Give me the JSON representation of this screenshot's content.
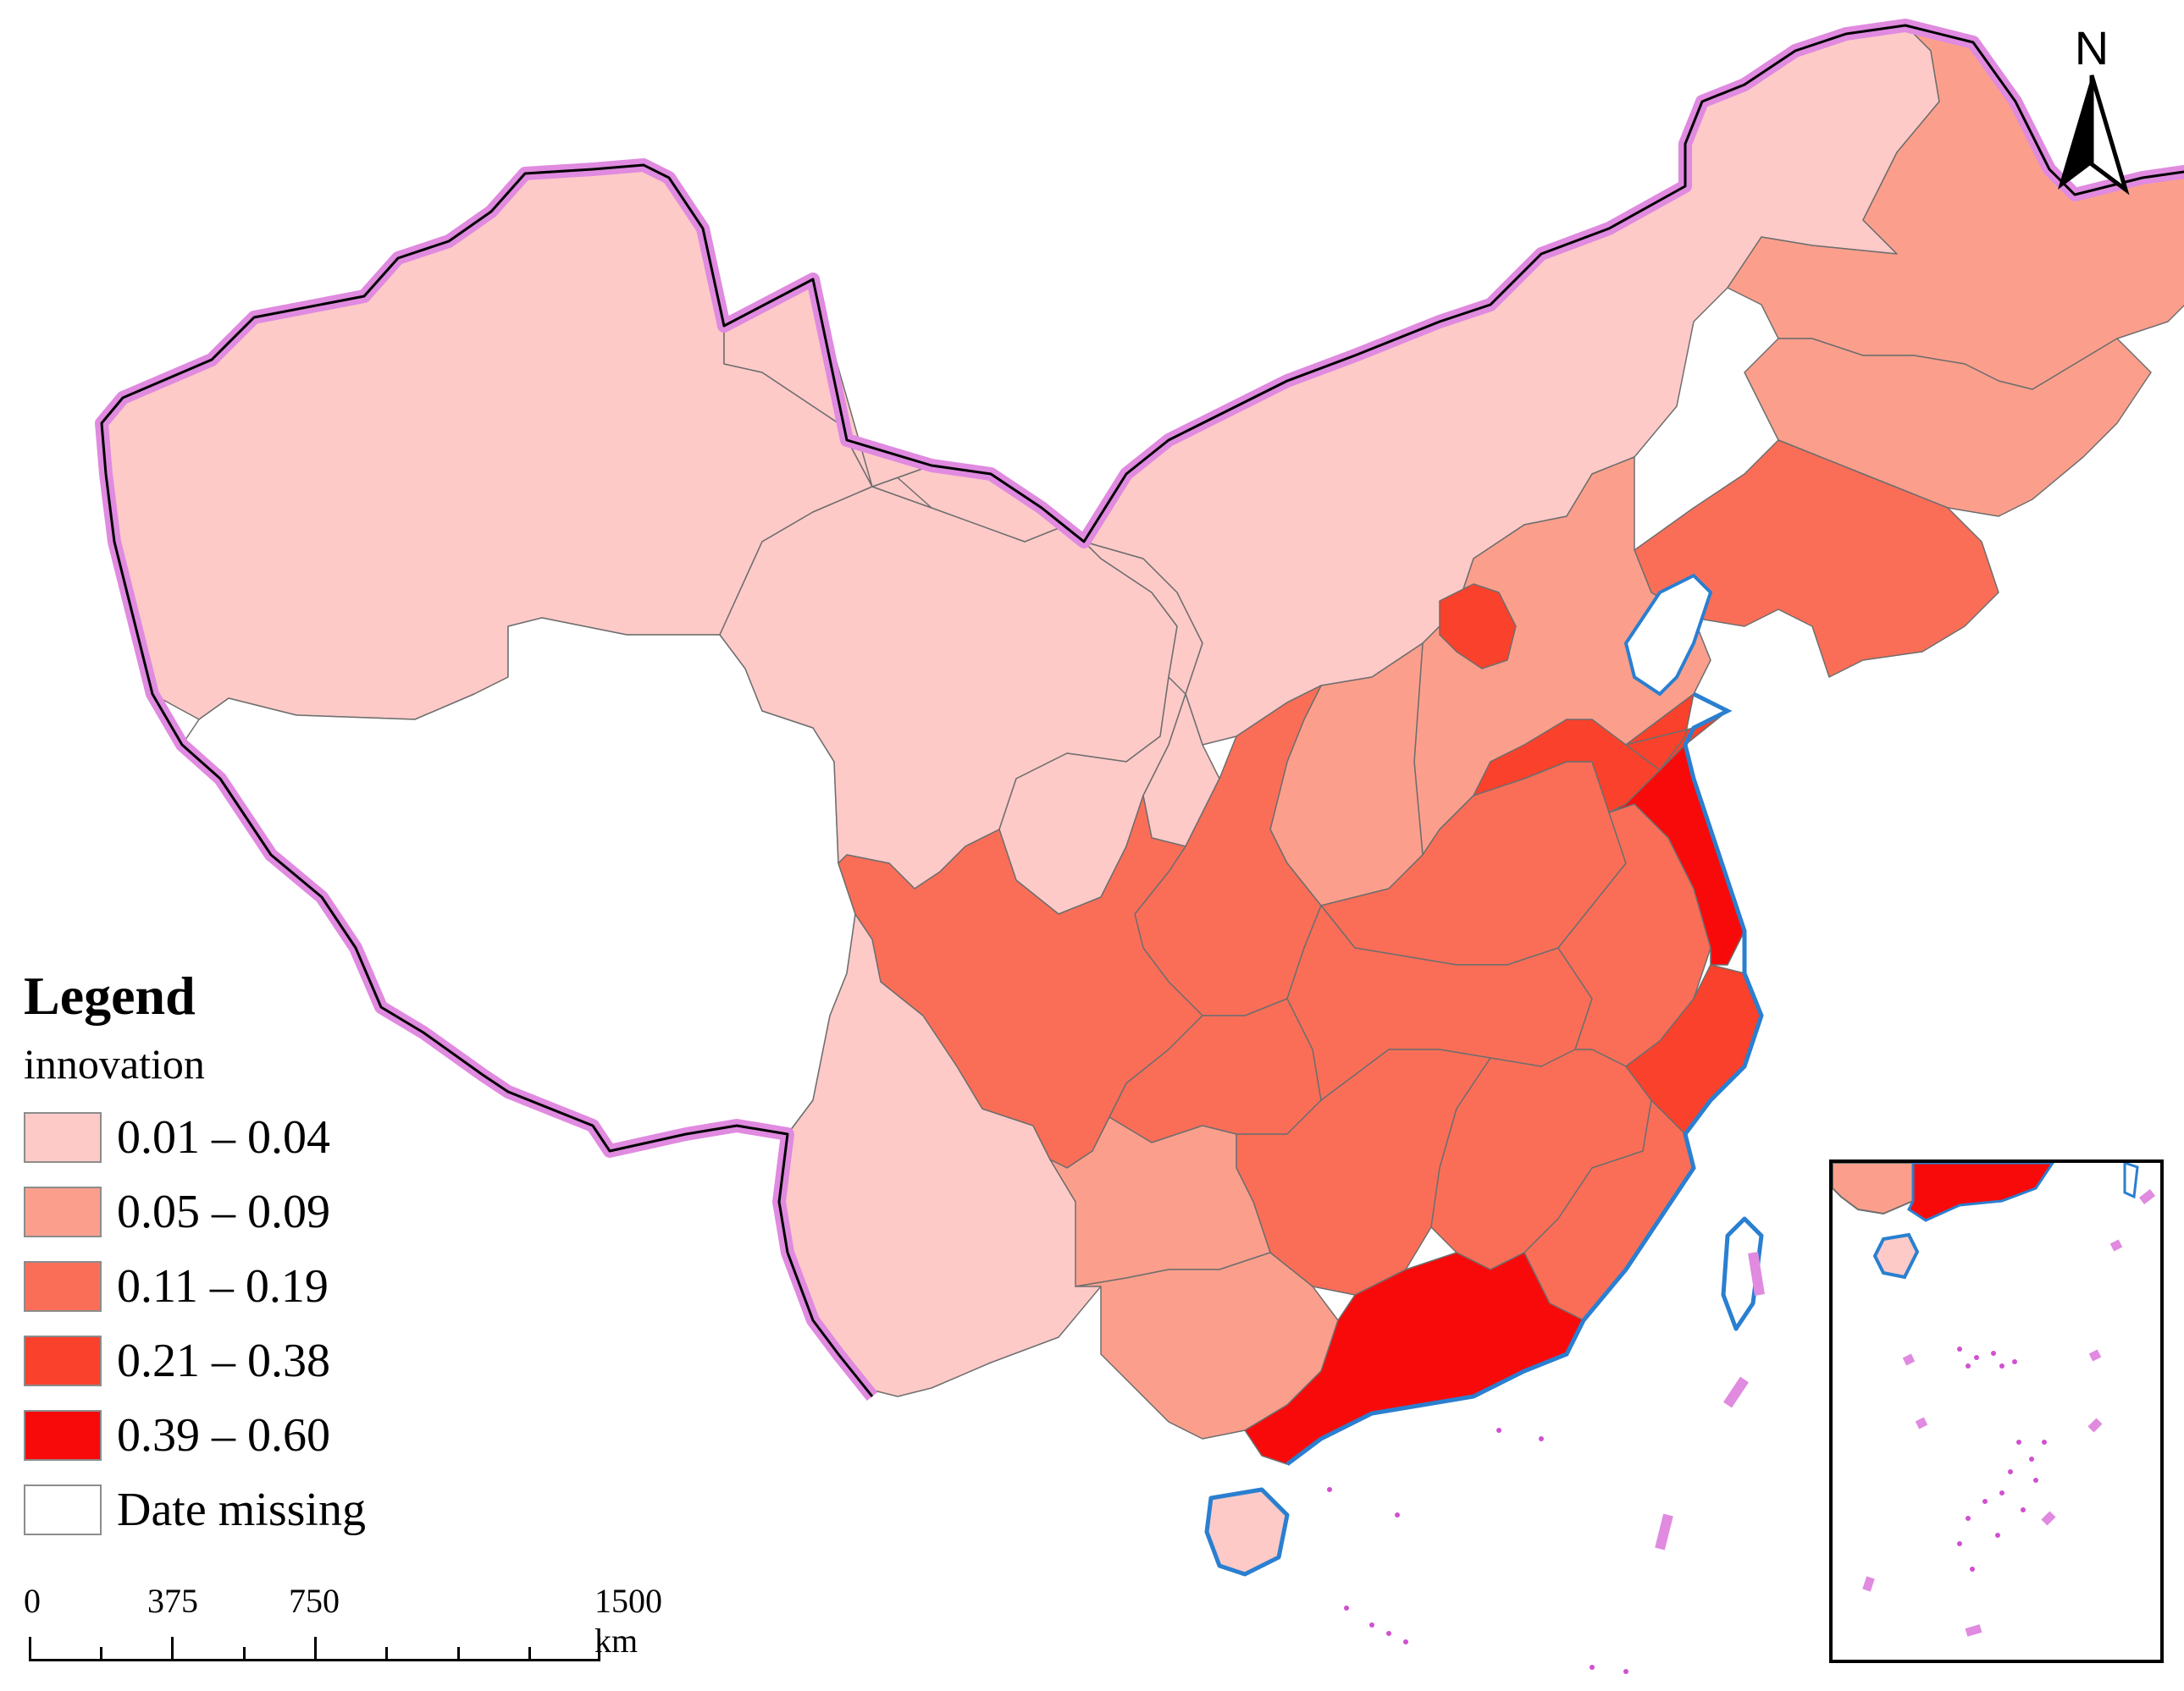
{
  "legend": {
    "title": "Legend",
    "field": "innovation",
    "classes": [
      {
        "label": "0.01 – 0.04",
        "color": "#fdcac8"
      },
      {
        "label": "0.05 – 0.09",
        "color": "#fb9f8c"
      },
      {
        "label": "0.11 – 0.19",
        "color": "#fa6e58"
      },
      {
        "label": "0.21 – 0.38",
        "color": "#f9412b"
      },
      {
        "label": "0.39 – 0.60",
        "color": "#f80a0a"
      },
      {
        "label": "Date missing",
        "color": "#ffffff"
      }
    ]
  },
  "scale_bar": {
    "ticks": [
      "0",
      "375",
      "750",
      "1500 km"
    ]
  },
  "north_arrow": {
    "label": "N",
    "icon": "north-arrow-icon"
  },
  "colors": {
    "border_glow": "#e08ae0",
    "coastline": "#2a7fd0",
    "province_outline": "#6e6e6e",
    "frame": "#000000"
  },
  "regions": [
    {
      "name": "Xinjiang",
      "class": 0
    },
    {
      "name": "Tibet",
      "class": 5
    },
    {
      "name": "Qinghai",
      "class": 0
    },
    {
      "name": "Gansu",
      "class": 0
    },
    {
      "name": "Inner Mongolia",
      "class": 0
    },
    {
      "name": "Ningxia",
      "class": 0
    },
    {
      "name": "Yunnan",
      "class": 0
    },
    {
      "name": "Heilongjiang",
      "class": 1
    },
    {
      "name": "Jilin",
      "class": 1
    },
    {
      "name": "Liaoning",
      "class": 2
    },
    {
      "name": "Hebei",
      "class": 1
    },
    {
      "name": "Beijing",
      "class": 3
    },
    {
      "name": "Shanxi",
      "class": 1
    },
    {
      "name": "Shaanxi",
      "class": 2
    },
    {
      "name": "Sichuan",
      "class": 2
    },
    {
      "name": "Chongqing",
      "class": 2
    },
    {
      "name": "Henan",
      "class": 2
    },
    {
      "name": "Hubei",
      "class": 2
    },
    {
      "name": "Hunan",
      "class": 2
    },
    {
      "name": "Anhui",
      "class": 2
    },
    {
      "name": "Jiangxi",
      "class": 2
    },
    {
      "name": "Fujian",
      "class": 2
    },
    {
      "name": "Guizhou",
      "class": 1
    },
    {
      "name": "Guangxi",
      "class": 1
    },
    {
      "name": "Shandong",
      "class": 3
    },
    {
      "name": "Zhejiang",
      "class": 3
    },
    {
      "name": "Jiangsu",
      "class": 4
    },
    {
      "name": "Guangdong",
      "class": 4
    },
    {
      "name": "Hainan",
      "class": 0
    },
    {
      "name": "Taiwan",
      "class": 5
    }
  ]
}
